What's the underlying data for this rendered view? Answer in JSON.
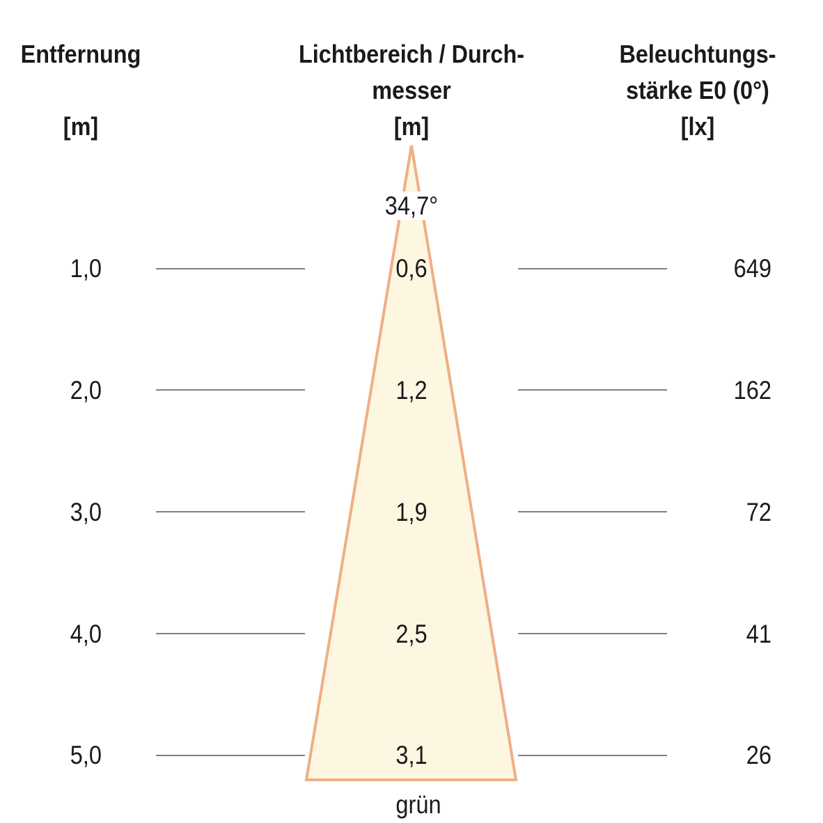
{
  "headers": {
    "distance": {
      "line1": "Entfernung",
      "unit": "[m]"
    },
    "diameter": {
      "line1": "Lichtbereich / Durch-",
      "line2": "messer",
      "unit": "[m]"
    },
    "illuminance": {
      "line1": "Beleuchtungs-",
      "line2": "stärke E0 (0°)",
      "unit": "[lx]"
    }
  },
  "beam_angle": "34,7°",
  "color_label": "grün",
  "rows": [
    {
      "distance": "1,0",
      "diameter": "0,6",
      "illuminance": "649"
    },
    {
      "distance": "2,0",
      "diameter": "1,2",
      "illuminance": "162"
    },
    {
      "distance": "3,0",
      "diameter": "1,9",
      "illuminance": "72"
    },
    {
      "distance": "4,0",
      "diameter": "2,5",
      "illuminance": "41"
    },
    {
      "distance": "5,0",
      "diameter": "3,1",
      "illuminance": "26"
    }
  ],
  "colors": {
    "beam_fill": "#fdf6e1",
    "beam_stroke": "#eeaf86",
    "rule": "#333333"
  }
}
